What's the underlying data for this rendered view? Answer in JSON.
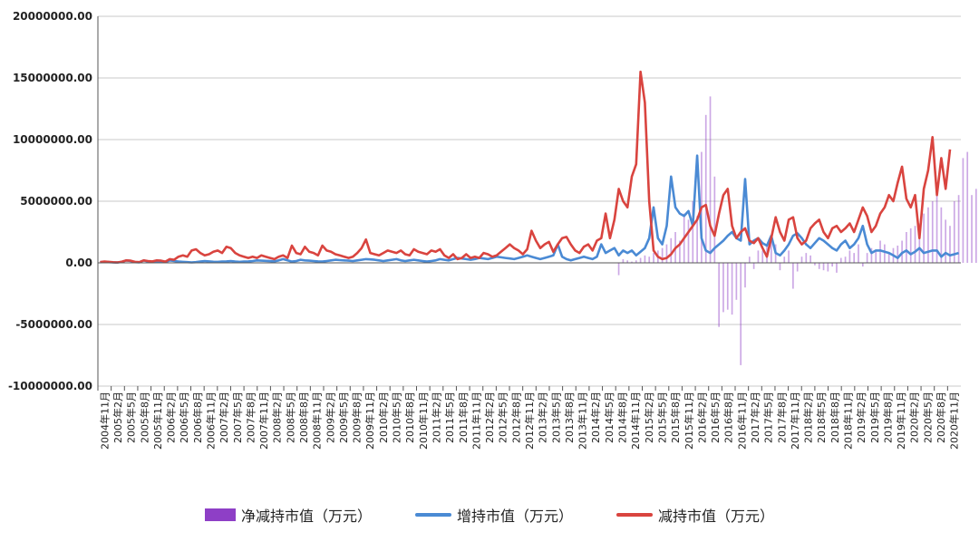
{
  "chart_data": {
    "type": "bar+line",
    "title": "",
    "xlabel": "",
    "ylabel": "",
    "ylim": [
      -10000000,
      20000000
    ],
    "yticks": [
      20000000,
      15000000,
      10000000,
      5000000,
      0,
      -5000000,
      -10000000
    ],
    "ytick_labels": [
      "20000000.00",
      "15000000.00",
      "10000000.00",
      "5000000.00",
      "0.00",
      "-5000000.00",
      "-10000000.00"
    ],
    "x_tick_labels": [
      "2004年11月",
      "2005年2月",
      "2005年5月",
      "2005年8月",
      "2005年11月",
      "2006年2月",
      "2006年5月",
      "2006年8月",
      "2006年11月",
      "2007年2月",
      "2007年5月",
      "2007年8月",
      "2007年11月",
      "2008年2月",
      "2008年5月",
      "2008年8月",
      "2008年11月",
      "2009年2月",
      "2009年5月",
      "2009年8月",
      "2009年11月",
      "2010年2月",
      "2010年5月",
      "2010年8月",
      "2010年11月",
      "2011年2月",
      "2011年5月",
      "2011年8月",
      "2011年11月",
      "2012年2月",
      "2012年5月",
      "2012年8月",
      "2012年11月",
      "2013年2月",
      "2013年5月",
      "2013年8月",
      "2013年11月",
      "2014年2月",
      "2014年5月",
      "2014年8月",
      "2014年11月",
      "2015年2月",
      "2015年5月",
      "2015年8月",
      "2015年11月",
      "2016年2月",
      "2016年5月",
      "2016年8月",
      "2016年11月",
      "2017年2月",
      "2017年5月",
      "2017年8月",
      "2017年11月",
      "2018年2月",
      "2018年5月",
      "2018年8月",
      "2018年11月",
      "2019年2月",
      "2019年5月",
      "2019年8月",
      "2019年11月",
      "2020年2月",
      "2020年5月",
      "2020年8月",
      "2020年11月"
    ],
    "series": [
      {
        "name": "净减持市值（万元）",
        "kind": "bar",
        "color": "#8e3fc6",
        "values": [
          0,
          0,
          0,
          0,
          0,
          0,
          0,
          0,
          0,
          0,
          0,
          0,
          0,
          0,
          0,
          0,
          0,
          0,
          0,
          0,
          0,
          0,
          0,
          0,
          0,
          0,
          0,
          0,
          0,
          0,
          0,
          0,
          0,
          0,
          0,
          0,
          0,
          0,
          0,
          0,
          0,
          0,
          0,
          0,
          0,
          0,
          0,
          0,
          0,
          0,
          0,
          0,
          0,
          0,
          0,
          0,
          0,
          0,
          0,
          0,
          0,
          0,
          0,
          0,
          0,
          0,
          0,
          0,
          0,
          0,
          0,
          0,
          0,
          0,
          0,
          0,
          0,
          0,
          0,
          0,
          0,
          0,
          0,
          0,
          0,
          0,
          0,
          0,
          0,
          0,
          0,
          0,
          0,
          0,
          0,
          0,
          0,
          0,
          0,
          0,
          0,
          0,
          0,
          0,
          0,
          0,
          0,
          0,
          0,
          0,
          0,
          0,
          0,
          0,
          0,
          0,
          0,
          0,
          0,
          -1000000,
          300000,
          200000,
          100000,
          200000,
          400000,
          600000,
          500000,
          800000,
          1000000,
          1200000,
          1500000,
          2000000,
          2500000,
          1800000,
          4000000,
          3500000,
          5000000,
          3800000,
          9000000,
          12000000,
          13500000,
          7000000,
          -5200000,
          -4000000,
          -3800000,
          -4200000,
          -3000000,
          -8300000,
          -2000000,
          500000,
          -500000,
          1000000,
          1000000,
          1500000,
          2000000,
          1500000,
          -600000,
          500000,
          1000000,
          -2100000,
          -700000,
          500000,
          800000,
          600000,
          -200000,
          -500000,
          -600000,
          -700000,
          -300000,
          -800000,
          400000,
          500000,
          1000000,
          800000,
          1500000,
          -300000,
          800000,
          1200000,
          1000000,
          1800000,
          1500000,
          800000,
          1200000,
          1400000,
          1800000,
          2500000,
          2800000,
          3000000,
          3200000,
          4000000,
          4500000,
          5000000,
          6500000,
          4500000,
          3500000,
          3000000,
          5000000,
          5500000,
          8500000,
          9000000,
          5500000,
          6000000,
          7800000,
          5000000,
          7800000
        ]
      },
      {
        "name": "增持市值（万元）",
        "kind": "line",
        "color": "#4a8ad4",
        "values": [
          50000,
          80000,
          60000,
          40000,
          30000,
          70000,
          200000,
          150000,
          60000,
          40000,
          200000,
          100000,
          80000,
          120000,
          100000,
          60000,
          200000,
          150000,
          100000,
          80000,
          60000,
          40000,
          60000,
          100000,
          150000,
          120000,
          90000,
          80000,
          100000,
          120000,
          150000,
          100000,
          80000,
          100000,
          120000,
          150000,
          200000,
          180000,
          160000,
          140000,
          120000,
          200000,
          300000,
          200000,
          100000,
          150000,
          250000,
          200000,
          180000,
          150000,
          120000,
          100000,
          150000,
          200000,
          250000,
          220000,
          200000,
          180000,
          150000,
          200000,
          250000,
          300000,
          280000,
          250000,
          200000,
          150000,
          200000,
          250000,
          300000,
          200000,
          150000,
          200000,
          250000,
          200000,
          150000,
          100000,
          150000,
          200000,
          300000,
          250000,
          200000,
          300000,
          400000,
          350000,
          300000,
          250000,
          300000,
          400000,
          350000,
          300000,
          400000,
          500000,
          450000,
          400000,
          350000,
          300000,
          400000,
          500000,
          600000,
          500000,
          400000,
          300000,
          400000,
          500000,
          600000,
          1500000,
          500000,
          300000,
          200000,
          300000,
          400000,
          500000,
          400000,
          300000,
          500000,
          1500000,
          800000,
          1000000,
          1200000,
          600000,
          1000000,
          800000,
          1000000,
          600000,
          900000,
          1200000,
          2000000,
          4500000,
          2000000,
          1500000,
          3000000,
          7000000,
          4500000,
          4000000,
          3800000,
          4200000,
          3000000,
          8700000,
          2000000,
          1000000,
          800000,
          1200000,
          1500000,
          1800000,
          2200000,
          2500000,
          2000000,
          1800000,
          6800000,
          1500000,
          1800000,
          2000000,
          1600000,
          1400000,
          2200000,
          800000,
          600000,
          1000000,
          1500000,
          2200000,
          2400000,
          2000000,
          1500000,
          1200000,
          1600000,
          2000000,
          1800000,
          1500000,
          1200000,
          1000000,
          1500000,
          1800000,
          1200000,
          1500000,
          2000000,
          3000000,
          1500000,
          800000,
          1000000,
          1000000,
          900000,
          800000,
          600000,
          400000,
          800000,
          1000000,
          700000,
          900000,
          1200000,
          800000,
          900000,
          1000000,
          1000000,
          500000,
          800000,
          600000,
          700000,
          800000
        ]
      },
      {
        "name": "减持市值（万元）",
        "kind": "line",
        "color": "#d9443f",
        "values": [
          60000,
          100000,
          80000,
          50000,
          40000,
          90000,
          200000,
          180000,
          80000,
          60000,
          200000,
          150000,
          120000,
          200000,
          180000,
          100000,
          300000,
          250000,
          500000,
          600000,
          500000,
          1000000,
          1100000,
          800000,
          600000,
          700000,
          900000,
          1000000,
          800000,
          1300000,
          1200000,
          800000,
          600000,
          500000,
          400000,
          500000,
          400000,
          600000,
          500000,
          400000,
          300000,
          500000,
          600000,
          400000,
          1400000,
          800000,
          700000,
          1300000,
          900000,
          800000,
          600000,
          1400000,
          1000000,
          900000,
          700000,
          600000,
          500000,
          400000,
          500000,
          800000,
          1200000,
          1900000,
          800000,
          700000,
          600000,
          800000,
          1000000,
          900000,
          800000,
          1000000,
          700000,
          600000,
          1100000,
          900000,
          800000,
          700000,
          1000000,
          900000,
          1100000,
          600000,
          400000,
          700000,
          300000,
          400000,
          700000,
          400000,
          500000,
          400000,
          800000,
          700000,
          500000,
          600000,
          900000,
          1200000,
          1500000,
          1200000,
          1000000,
          700000,
          1100000,
          2600000,
          1800000,
          1200000,
          1500000,
          1700000,
          900000,
          1500000,
          2000000,
          2100000,
          1500000,
          1000000,
          800000,
          1300000,
          1500000,
          1000000,
          1800000,
          2000000,
          4000000,
          2000000,
          3500000,
          6000000,
          5000000,
          4500000,
          7000000,
          8000000,
          15500000,
          13000000,
          5000000,
          1000000,
          500000,
          300000,
          400000,
          700000,
          1200000,
          1500000,
          2000000,
          2500000,
          3000000,
          3500000,
          4500000,
          4700000,
          3000000,
          2200000,
          4000000,
          5500000,
          6000000,
          3000000,
          2000000,
          2500000,
          2800000,
          1800000,
          1600000,
          2000000,
          1200000,
          500000,
          2000000,
          3700000,
          2500000,
          1800000,
          3500000,
          3700000,
          2000000,
          1500000,
          1800000,
          2800000,
          3200000,
          3500000,
          2500000,
          2000000,
          2800000,
          3000000,
          2500000,
          2800000,
          3200000,
          2500000,
          3500000,
          4500000,
          3800000,
          2500000,
          3000000,
          4000000,
          4500000,
          5500000,
          5000000,
          6500000,
          7800000,
          5200000,
          4500000,
          5500000,
          2000000,
          6000000,
          7500000,
          10200000,
          5500000,
          8500000,
          6000000,
          9200000
        ]
      }
    ]
  },
  "legend": {
    "net_label": "净减持市值（万元）",
    "add_label": "增持市值（万元）",
    "reduce_label": "减持市值（万元）"
  },
  "colors": {
    "net": "#8e3fc6",
    "add": "#4a8ad4",
    "reduce": "#d9443f",
    "grid": "#c8c8c8",
    "axis": "#555555"
  }
}
